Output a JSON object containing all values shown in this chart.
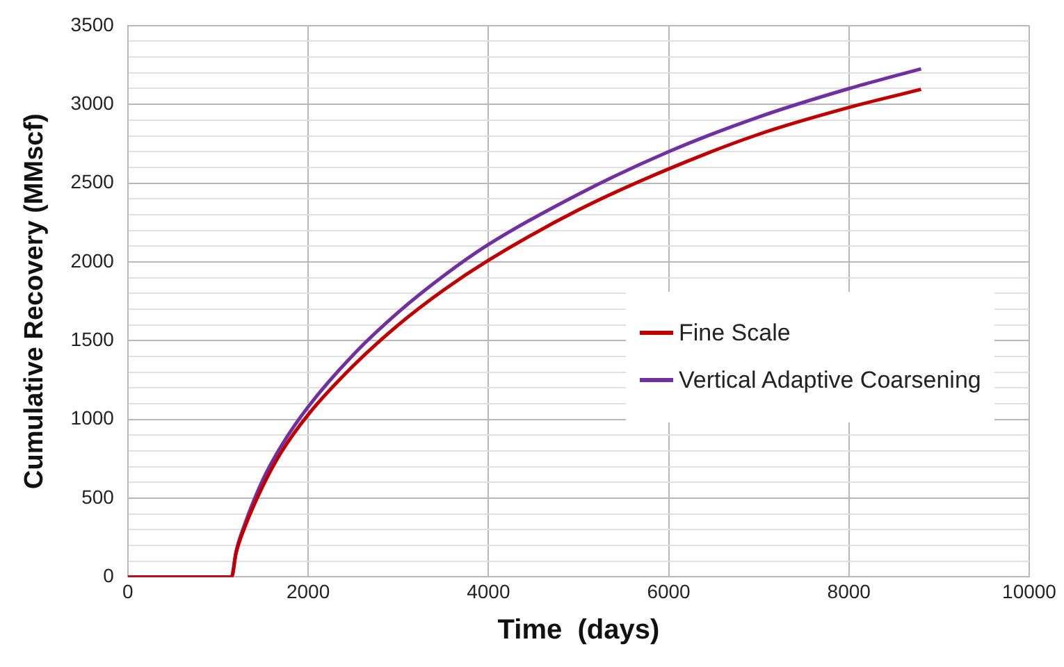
{
  "chart_data": {
    "type": "line",
    "xlabel": "Time  (days)",
    "ylabel": "Cumulative Recovery (MMscf)",
    "xlim": [
      0,
      10000
    ],
    "xticks": [
      0,
      2000,
      4000,
      6000,
      8000,
      10000
    ],
    "ylim": [
      0,
      3500
    ],
    "yticks": [
      0,
      {
        "value": 100,
        "label": null
      },
      {
        "value": 200,
        "label": null
      },
      {
        "value": 300,
        "label": null
      },
      {
        "value": 400,
        "label": null
      },
      500,
      {
        "value": 600,
        "label": null
      },
      {
        "value": 700,
        "label": null
      },
      {
        "value": 800,
        "label": null
      },
      {
        "value": 900,
        "label": null
      },
      1000,
      {
        "value": 1100,
        "label": null
      },
      {
        "value": 1200,
        "label": null
      },
      {
        "value": 1300,
        "label": null
      },
      {
        "value": 1400,
        "label": null
      },
      1500,
      {
        "value": 1600,
        "label": null
      },
      {
        "value": 1700,
        "label": null
      },
      {
        "value": 1800,
        "label": null
      },
      {
        "value": 1900,
        "label": null
      },
      2000,
      {
        "value": 2100,
        "label": null
      },
      {
        "value": 2200,
        "label": null
      },
      {
        "value": 2300,
        "label": null
      },
      {
        "value": 2400,
        "label": null
      },
      2500,
      {
        "value": 2600,
        "label": null
      },
      {
        "value": 2700,
        "label": null
      },
      {
        "value": 2800,
        "label": null
      },
      {
        "value": 2900,
        "label": null
      },
      3000,
      {
        "value": 3100,
        "label": null
      },
      {
        "value": 3200,
        "label": null
      },
      {
        "value": 3300,
        "label": null
      },
      {
        "value": 3400,
        "label": null
      },
      3500
    ],
    "grid": true,
    "legend": "right",
    "marker": "none",
    "line_style": "solid",
    "x": [
      0,
      1150,
      1200,
      1300,
      1500,
      1700,
      2000,
      2500,
      3000,
      3500,
      4000,
      5000,
      6000,
      7000,
      8000,
      8800
    ],
    "series": [
      {
        "name": "Fine Scale",
        "color": "#c00000",
        "values": [
          0,
          0,
          150,
          320,
          580,
          790,
          1030,
          1340,
          1600,
          1820,
          2010,
          2330,
          2590,
          2810,
          2980,
          3095
        ]
      },
      {
        "name": "Vertical Adaptive Coarsening",
        "color": "#7030a0",
        "values": [
          0,
          0,
          160,
          340,
          620,
          830,
          1080,
          1410,
          1680,
          1910,
          2110,
          2430,
          2700,
          2920,
          3100,
          3225
        ]
      }
    ]
  }
}
